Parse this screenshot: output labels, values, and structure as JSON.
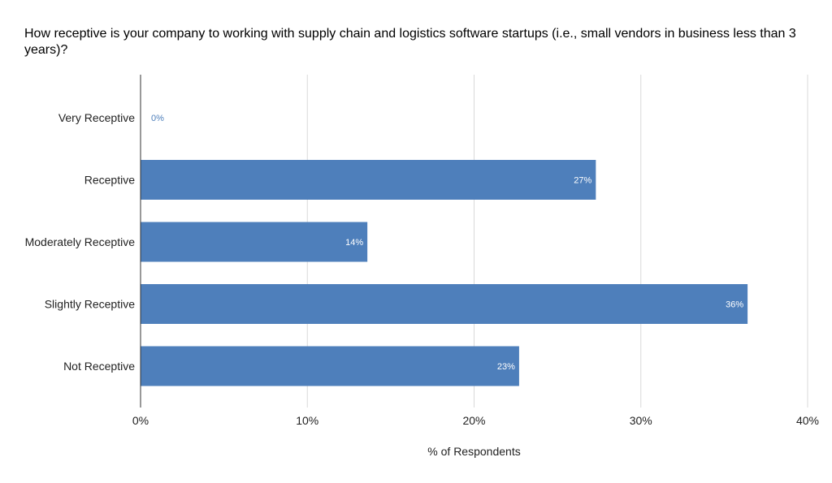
{
  "chart_data": {
    "type": "bar",
    "orientation": "horizontal",
    "title": "How receptive is your company to working with supply chain and logistics software startups (i.e., small vendors in business less than 3 years)?",
    "categories": [
      "Very Receptive",
      "Receptive",
      "Moderately Receptive",
      "Slightly Receptive",
      "Not Receptive"
    ],
    "values": [
      0,
      27.3,
      13.6,
      36.4,
      22.7
    ],
    "data_labels": [
      "0%",
      "27%",
      "14%",
      "36%",
      "23%"
    ],
    "xlabel": "% of Respondents",
    "ylabel": "",
    "xlim": [
      0,
      40
    ],
    "x_ticks": [
      0,
      10,
      20,
      30,
      40
    ],
    "x_tick_labels": [
      "0%",
      "10%",
      "20%",
      "30%",
      "40%"
    ],
    "grid": true,
    "legend": "none",
    "colors": {
      "bar": "#4e7fbb",
      "grid": "#d9d9d9",
      "axis": "#333333",
      "label_inside": "#ffffff",
      "label_outside": "#4e7fbb"
    }
  }
}
